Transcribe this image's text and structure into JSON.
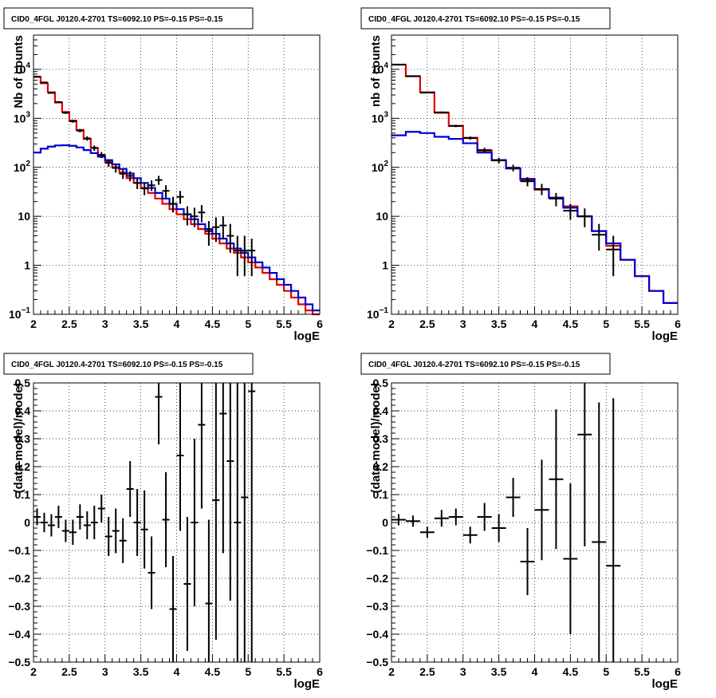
{
  "colors": {
    "data": "#000000",
    "total_model": "#e00000",
    "component_model": "#0000d0",
    "grid": "#000000"
  },
  "chart_data": [
    {
      "type": "line",
      "title": "CID0_4FGL J0120.4-2701 TS=6092.10 PS=-0.15 PS=-0.15",
      "xlabel": "logE",
      "ylabel": "Nb of counts",
      "xlim": [
        2,
        6
      ],
      "ylim": [
        0.1,
        50000
      ],
      "yscale": "log",
      "grid": true,
      "xticks": [
        "2",
        "2.5",
        "3",
        "3.5",
        "4",
        "4.5",
        "5",
        "5.5",
        "6"
      ],
      "yticks": [
        {
          "v": 0.1,
          "label": "10",
          "exp": "−1"
        },
        {
          "v": 1,
          "label": "1",
          "exp": ""
        },
        {
          "v": 10,
          "label": "10",
          "exp": ""
        },
        {
          "v": 100,
          "label": "10",
          "exp": "2"
        },
        {
          "v": 1000,
          "label": "10",
          "exp": "3"
        },
        {
          "v": 10000,
          "label": "10",
          "exp": "4"
        }
      ],
      "bin_edges": [
        2.0,
        2.1,
        2.2,
        2.3,
        2.4,
        2.5,
        2.6,
        2.7,
        2.8,
        2.9,
        3.0,
        3.1,
        3.2,
        3.3,
        3.4,
        3.5,
        3.6,
        3.7,
        3.8,
        3.9,
        4.0,
        4.1,
        4.2,
        4.3,
        4.4,
        4.5,
        4.6,
        4.7,
        4.8,
        4.9,
        5.0,
        5.1,
        5.2,
        5.3,
        5.4,
        5.5,
        5.6,
        5.7,
        5.8,
        5.9,
        6.0
      ],
      "series": [
        {
          "name": "total_model",
          "style": "hist",
          "values": [
            7000,
            5200,
            3400,
            2100,
            1350,
            900,
            580,
            380,
            250,
            175,
            130,
            100,
            78,
            60,
            48,
            38,
            30,
            23,
            18,
            14,
            11,
            8.7,
            6.9,
            5.5,
            4.4,
            3.5,
            2.8,
            2.2,
            1.8,
            1.45,
            1.15,
            0.9,
            0.7,
            0.52,
            0.4,
            0.3,
            0.22,
            0.16,
            0.12,
            0.1
          ]
        },
        {
          "name": "component_model",
          "style": "hist",
          "values": [
            200,
            240,
            265,
            280,
            282,
            275,
            255,
            225,
            195,
            165,
            140,
            115,
            93,
            75,
            60,
            48,
            38,
            30,
            23,
            18,
            14,
            11,
            8.7,
            6.9,
            5.5,
            4.4,
            3.5,
            2.8,
            2.2,
            1.8,
            1.45,
            1.15,
            0.9,
            0.7,
            0.52,
            0.4,
            0.3,
            0.22,
            0.16,
            0.12
          ]
        },
        {
          "name": "data",
          "style": "errorbar",
          "points": [
            {
              "x": 2.05,
              "y": 7100,
              "lo": 6900,
              "hi": 7300
            },
            {
              "x": 2.15,
              "y": 5400,
              "lo": 5250,
              "hi": 5550
            },
            {
              "x": 2.25,
              "y": 3300,
              "lo": 3200,
              "hi": 3400
            },
            {
              "x": 2.35,
              "y": 2150,
              "lo": 2060,
              "hi": 2240
            },
            {
              "x": 2.45,
              "y": 1300,
              "lo": 1230,
              "hi": 1370
            },
            {
              "x": 2.55,
              "y": 870,
              "lo": 815,
              "hi": 925
            },
            {
              "x": 2.65,
              "y": 560,
              "lo": 515,
              "hi": 605
            },
            {
              "x": 2.75,
              "y": 390,
              "lo": 350,
              "hi": 430
            },
            {
              "x": 2.85,
              "y": 248,
              "lo": 218,
              "hi": 278
            },
            {
              "x": 2.95,
              "y": 180,
              "lo": 155,
              "hi": 205
            },
            {
              "x": 3.05,
              "y": 123,
              "lo": 102,
              "hi": 145
            },
            {
              "x": 3.15,
              "y": 97,
              "lo": 78,
              "hi": 116
            },
            {
              "x": 3.25,
              "y": 74,
              "lo": 58,
              "hi": 90
            },
            {
              "x": 3.35,
              "y": 67,
              "lo": 52,
              "hi": 83
            },
            {
              "x": 3.45,
              "y": 48,
              "lo": 36,
              "hi": 61
            },
            {
              "x": 3.55,
              "y": 37,
              "lo": 27,
              "hi": 49
            },
            {
              "x": 3.65,
              "y": 43,
              "lo": 33,
              "hi": 54
            },
            {
              "x": 3.75,
              "y": 55,
              "lo": 44,
              "hi": 67
            },
            {
              "x": 3.85,
              "y": 33,
              "lo": 24,
              "hi": 43
            },
            {
              "x": 3.95,
              "y": 18,
              "lo": 12,
              "hi": 25
            },
            {
              "x": 4.05,
              "y": 25,
              "lo": 18,
              "hi": 33
            },
            {
              "x": 4.15,
              "y": 11,
              "lo": 6.5,
              "hi": 16
            },
            {
              "x": 4.25,
              "y": 10,
              "lo": 6,
              "hi": 15
            },
            {
              "x": 4.35,
              "y": 12,
              "lo": 7.5,
              "hi": 17
            },
            {
              "x": 4.45,
              "y": 5,
              "lo": 2.5,
              "hi": 8
            },
            {
              "x": 4.55,
              "y": 6,
              "lo": 3,
              "hi": 9.5
            },
            {
              "x": 4.65,
              "y": 6.5,
              "lo": 3.5,
              "hi": 10
            },
            {
              "x": 4.75,
              "y": 4,
              "lo": 1.8,
              "hi": 7
            },
            {
              "x": 4.85,
              "y": 2,
              "lo": 0.6,
              "hi": 4
            },
            {
              "x": 4.95,
              "y": 2,
              "lo": 0.6,
              "hi": 4
            },
            {
              "x": 5.05,
              "y": 2,
              "lo": 0.6,
              "hi": 3.5
            }
          ]
        }
      ]
    },
    {
      "type": "line",
      "title": "CID0_4FGL J0120.4-2701 TS=6092.10 PS=-0.15 PS=-0.15",
      "xlabel": "logE",
      "ylabel": "nb of counts",
      "xlim": [
        2,
        6
      ],
      "ylim": [
        0.1,
        50000
      ],
      "yscale": "log",
      "grid": true,
      "xticks": [
        "2",
        "2.5",
        "3",
        "3.5",
        "4",
        "4.5",
        "5",
        "5.5",
        "6"
      ],
      "yticks": [
        {
          "v": 0.1,
          "label": "10",
          "exp": "−1"
        },
        {
          "v": 1,
          "label": "1",
          "exp": ""
        },
        {
          "v": 10,
          "label": "10",
          "exp": ""
        },
        {
          "v": 100,
          "label": "10",
          "exp": "2"
        },
        {
          "v": 1000,
          "label": "10",
          "exp": "3"
        },
        {
          "v": 10000,
          "label": "10",
          "exp": "4"
        }
      ],
      "bin_edges": [
        2.0,
        2.2,
        2.4,
        2.6,
        2.8,
        3.0,
        3.2,
        3.4,
        3.6,
        3.8,
        4.0,
        4.2,
        4.4,
        4.6,
        4.8,
        5.0,
        5.2,
        5.4,
        5.6,
        5.8,
        6.0
      ],
      "series": [
        {
          "name": "total_model",
          "style": "hist",
          "values": [
            12500,
            7200,
            3400,
            1300,
            700,
            400,
            220,
            140,
            95,
            55,
            35,
            24,
            16,
            10,
            5,
            2.5,
            1.3,
            0.6,
            0.3,
            0.17
          ]
        },
        {
          "name": "component_model",
          "style": "hist",
          "values": [
            450,
            530,
            500,
            420,
            380,
            310,
            200,
            140,
            95,
            58,
            36,
            24,
            15,
            10,
            5,
            2.8,
            1.3,
            0.6,
            0.3,
            0.17
          ]
        },
        {
          "name": "data",
          "style": "errorbar",
          "points": [
            {
              "x": 2.1,
              "y": 12500,
              "lo": 12300,
              "hi": 12700
            },
            {
              "x": 2.3,
              "y": 7300,
              "lo": 7150,
              "hi": 7450
            },
            {
              "x": 2.5,
              "y": 3350,
              "lo": 3250,
              "hi": 3450
            },
            {
              "x": 2.7,
              "y": 1320,
              "lo": 1260,
              "hi": 1380
            },
            {
              "x": 2.9,
              "y": 700,
              "lo": 660,
              "hi": 740
            },
            {
              "x": 3.1,
              "y": 395,
              "lo": 365,
              "hi": 425
            },
            {
              "x": 3.3,
              "y": 225,
              "lo": 200,
              "hi": 250
            },
            {
              "x": 3.5,
              "y": 138,
              "lo": 120,
              "hi": 156
            },
            {
              "x": 3.7,
              "y": 98,
              "lo": 83,
              "hi": 113
            },
            {
              "x": 3.9,
              "y": 52,
              "lo": 41,
              "hi": 63
            },
            {
              "x": 4.1,
              "y": 36,
              "lo": 27,
              "hi": 46
            },
            {
              "x": 4.3,
              "y": 23,
              "lo": 16,
              "hi": 30
            },
            {
              "x": 4.5,
              "y": 13,
              "lo": 8.5,
              "hi": 18
            },
            {
              "x": 4.7,
              "y": 10,
              "lo": 6,
              "hi": 14.5
            },
            {
              "x": 4.9,
              "y": 4.2,
              "lo": 2,
              "hi": 7
            },
            {
              "x": 5.1,
              "y": 2.1,
              "lo": 0.6,
              "hi": 4
            }
          ]
        }
      ]
    },
    {
      "type": "scatter",
      "title": "CID0_4FGL J0120.4-2701 TS=6092.10 PS=-0.15 PS=-0.15",
      "xlabel": "logE",
      "ylabel": "(data-model)/model",
      "xlim": [
        2,
        6
      ],
      "ylim": [
        -0.5,
        0.5
      ],
      "yscale": "linear",
      "grid": true,
      "xticks": [
        "2",
        "2.5",
        "3",
        "3.5",
        "4",
        "4.5",
        "5",
        "5.5",
        "6"
      ],
      "yticks": [
        {
          "v": -0.5,
          "label": "−0.5"
        },
        {
          "v": -0.4,
          "label": "−0.4"
        },
        {
          "v": -0.3,
          "label": "−0.3"
        },
        {
          "v": -0.2,
          "label": "−0.2"
        },
        {
          "v": -0.1,
          "label": "−0.1"
        },
        {
          "v": 0,
          "label": "0"
        },
        {
          "v": 0.1,
          "label": "0.1"
        },
        {
          "v": 0.2,
          "label": "0.2"
        },
        {
          "v": 0.3,
          "label": "0.3"
        },
        {
          "v": 0.4,
          "label": "0.4"
        },
        {
          "v": 0.5,
          "label": "0.5"
        }
      ],
      "xerr": 0.05,
      "series": [
        {
          "name": "residuals",
          "style": "errorbar",
          "points": [
            {
              "x": 2.05,
              "y": 0.02,
              "e": 0.03
            },
            {
              "x": 2.15,
              "y": 0.0,
              "e": 0.035
            },
            {
              "x": 2.25,
              "y": -0.01,
              "e": 0.04
            },
            {
              "x": 2.35,
              "y": 0.02,
              "e": 0.04
            },
            {
              "x": 2.45,
              "y": -0.03,
              "e": 0.04
            },
            {
              "x": 2.55,
              "y": -0.035,
              "e": 0.045
            },
            {
              "x": 2.65,
              "y": 0.02,
              "e": 0.045
            },
            {
              "x": 2.75,
              "y": -0.01,
              "e": 0.05
            },
            {
              "x": 2.85,
              "y": 0.0,
              "e": 0.06
            },
            {
              "x": 2.95,
              "y": 0.05,
              "e": 0.05
            },
            {
              "x": 3.05,
              "y": -0.05,
              "e": 0.07
            },
            {
              "x": 3.15,
              "y": -0.03,
              "e": 0.08
            },
            {
              "x": 3.25,
              "y": -0.065,
              "e": 0.08
            },
            {
              "x": 3.35,
              "y": 0.12,
              "e": 0.1
            },
            {
              "x": 3.45,
              "y": 0.0,
              "e": 0.12
            },
            {
              "x": 3.55,
              "y": -0.025,
              "e": 0.14
            },
            {
              "x": 3.65,
              "y": -0.18,
              "e": 0.13
            },
            {
              "x": 3.75,
              "y": 0.45,
              "e": 0.17
            },
            {
              "x": 3.85,
              "y": 0.01,
              "e": 0.17
            },
            {
              "x": 3.95,
              "y": -0.31,
              "e": 0.19
            },
            {
              "x": 4.05,
              "y": 0.24,
              "e": 0.27
            },
            {
              "x": 4.15,
              "y": -0.22,
              "e": 0.24
            },
            {
              "x": 4.25,
              "y": 0.0,
              "e": 0.3
            },
            {
              "x": 4.35,
              "y": 0.35,
              "e": 0.3
            },
            {
              "x": 4.45,
              "y": -0.29,
              "e": 0.3
            },
            {
              "x": 4.55,
              "y": 0.08,
              "e": 0.5
            },
            {
              "x": 4.65,
              "y": 0.39,
              "e": 0.5
            },
            {
              "x": 4.75,
              "y": 0.22,
              "e": 0.5
            },
            {
              "x": 4.85,
              "y": 0.0,
              "e": 0.5
            },
            {
              "x": 4.95,
              "y": 0.09,
              "e": 0.6
            },
            {
              "x": 5.05,
              "y": 0.47,
              "e": 1.0
            }
          ]
        }
      ]
    },
    {
      "type": "scatter",
      "title": "CID0_4FGL J0120.4-2701 TS=6092.10 PS=-0.15 PS=-0.15",
      "xlabel": "logE",
      "ylabel": "(data-model)/model",
      "xlim": [
        2,
        6
      ],
      "ylim": [
        -0.5,
        0.5
      ],
      "yscale": "linear",
      "grid": true,
      "xticks": [
        "2",
        "2.5",
        "3",
        "3.5",
        "4",
        "4.5",
        "5",
        "5.5",
        "6"
      ],
      "yticks": [
        {
          "v": -0.5,
          "label": "−0.5"
        },
        {
          "v": -0.4,
          "label": "−0.4"
        },
        {
          "v": -0.3,
          "label": "−0.3"
        },
        {
          "v": -0.2,
          "label": "−0.2"
        },
        {
          "v": -0.1,
          "label": "−0.1"
        },
        {
          "v": 0,
          "label": "0"
        },
        {
          "v": 0.1,
          "label": "0.1"
        },
        {
          "v": 0.2,
          "label": "0.2"
        },
        {
          "v": 0.3,
          "label": "0.3"
        },
        {
          "v": 0.4,
          "label": "0.4"
        },
        {
          "v": 0.5,
          "label": "0.5"
        }
      ],
      "xerr": 0.1,
      "series": [
        {
          "name": "residuals",
          "style": "errorbar",
          "points": [
            {
              "x": 2.1,
              "y": 0.01,
              "e": 0.02
            },
            {
              "x": 2.3,
              "y": 0.005,
              "e": 0.02
            },
            {
              "x": 2.5,
              "y": -0.035,
              "e": 0.02
            },
            {
              "x": 2.7,
              "y": 0.015,
              "e": 0.03
            },
            {
              "x": 2.9,
              "y": 0.02,
              "e": 0.03
            },
            {
              "x": 3.1,
              "y": -0.045,
              "e": 0.03
            },
            {
              "x": 3.3,
              "y": 0.02,
              "e": 0.05
            },
            {
              "x": 3.5,
              "y": -0.02,
              "e": 0.05
            },
            {
              "x": 3.7,
              "y": 0.09,
              "e": 0.07
            },
            {
              "x": 3.9,
              "y": -0.14,
              "e": 0.12
            },
            {
              "x": 4.1,
              "y": 0.045,
              "e": 0.18
            },
            {
              "x": 4.3,
              "y": 0.155,
              "e": 0.25
            },
            {
              "x": 4.5,
              "y": -0.13,
              "e": 0.27
            },
            {
              "x": 4.7,
              "y": 0.315,
              "e": 0.4
            },
            {
              "x": 4.9,
              "y": -0.07,
              "e": 0.5
            },
            {
              "x": 5.1,
              "y": -0.155,
              "e": 0.6
            }
          ]
        }
      ]
    }
  ]
}
